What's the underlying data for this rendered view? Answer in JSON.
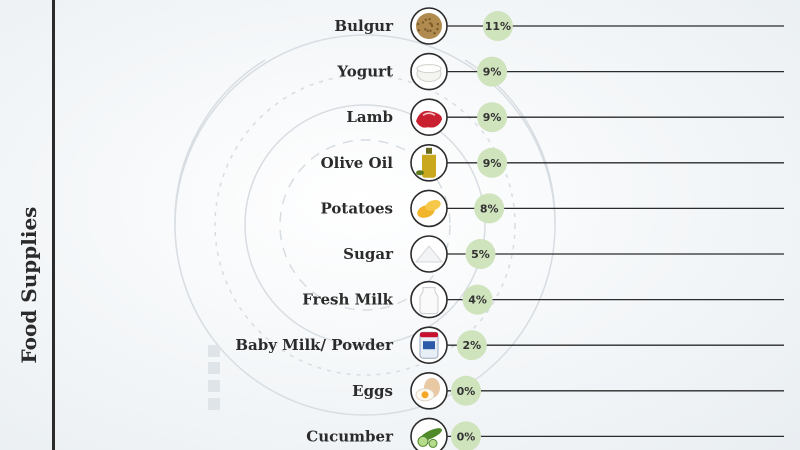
{
  "side_title": "Food Supplies",
  "chart_data": {
    "type": "bar",
    "categories": [
      "Bulgur",
      "Yogurt",
      "Lamb",
      "Olive Oil",
      "Potatoes",
      "Sugar",
      "Fresh Milk",
      "Baby Milk/ Powder",
      "Eggs",
      "Cucumber"
    ],
    "values": [
      11,
      9,
      9,
      9,
      8,
      5,
      4,
      2,
      0,
      0
    ],
    "value_labels": [
      "11%",
      "9%",
      "9%",
      "9%",
      "8%",
      "5%",
      "4%",
      "2%",
      "0%",
      "0%"
    ],
    "icons": [
      "bulgur-icon",
      "yogurt-icon",
      "lamb-icon",
      "olive-oil-icon",
      "potatoes-icon",
      "sugar-icon",
      "fresh-milk-icon",
      "baby-milk-powder-icon",
      "eggs-icon",
      "cucumber-icon"
    ],
    "colors": {
      "bubble": "#cfe3bd",
      "line": "#2b2b2b",
      "text": "#2b2b2b"
    }
  }
}
